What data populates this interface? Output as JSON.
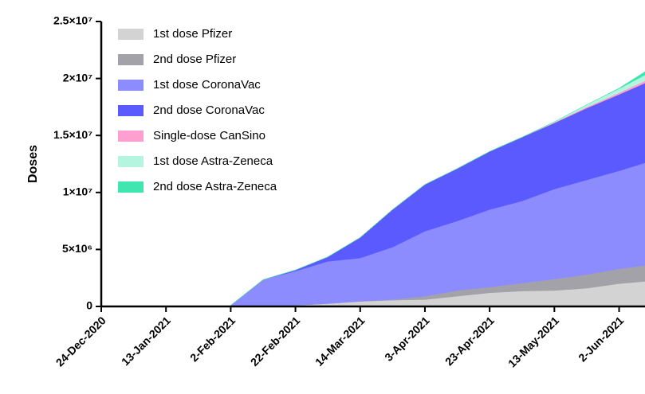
{
  "chart_data": {
    "type": "stacked-area",
    "ylabel": "Doses",
    "x": [
      "2021-02-02",
      "2021-02-12",
      "2021-02-22",
      "2021-03-04",
      "2021-03-14",
      "2021-03-24",
      "2021-04-03",
      "2021-04-13",
      "2021-04-23",
      "2021-05-03",
      "2021-05-13",
      "2021-05-23",
      "2021-06-02",
      "2021-06-10"
    ],
    "series": [
      {
        "name": "1st dose Pfizer",
        "color": "#d3d3d3",
        "values": [
          0,
          50000,
          100000,
          250000,
          450000,
          550000,
          600000,
          900000,
          1200000,
          1350000,
          1400000,
          1600000,
          2000000,
          2200000
        ]
      },
      {
        "name": "2nd dose Pfizer",
        "color": "#a2a2a8",
        "values": [
          0,
          0,
          0,
          0,
          0,
          50000,
          300000,
          500000,
          500000,
          700000,
          1000000,
          1200000,
          1300000,
          1400000
        ]
      },
      {
        "name": "1st dose CoronaVac",
        "color": "#8c8cff",
        "values": [
          100000,
          2300000,
          3000000,
          3700000,
          3800000,
          4600000,
          5700000,
          6100000,
          6800000,
          7200000,
          7900000,
          8300000,
          8600000,
          9000000
        ]
      },
      {
        "name": "2nd dose CoronaVac",
        "color": "#5a5aff",
        "values": [
          0,
          0,
          100000,
          400000,
          1800000,
          3300000,
          4100000,
          4600000,
          5100000,
          5600000,
          5800000,
          6300000,
          6700000,
          7000000
        ]
      },
      {
        "name": "Single-dose CanSino",
        "color": "#ff9fcf",
        "values": [
          0,
          0,
          0,
          0,
          0,
          0,
          0,
          0,
          0,
          0,
          50000,
          100000,
          150000,
          200000
        ]
      },
      {
        "name": "1st dose Astra-Zeneca",
        "color": "#b5f5e0",
        "values": [
          0,
          0,
          0,
          0,
          0,
          0,
          0,
          0,
          0,
          0,
          50000,
          200000,
          350000,
          500000
        ]
      },
      {
        "name": "2nd dose Astra-Zeneca",
        "color": "#40e6b0",
        "values": [
          0,
          0,
          0,
          0,
          0,
          0,
          0,
          0,
          0,
          0,
          0,
          0,
          50000,
          300000
        ]
      }
    ],
    "xlim": [
      "2020-12-24",
      "2021-06-10"
    ],
    "xticks": [
      {
        "value": "2020-12-24",
        "label": "24-Dec-2020"
      },
      {
        "value": "2021-01-13",
        "label": "13-Jan-2021"
      },
      {
        "value": "2021-02-02",
        "label": "2-Feb-2021"
      },
      {
        "value": "2021-02-22",
        "label": "22-Feb-2021"
      },
      {
        "value": "2021-03-14",
        "label": "14-Mar-2021"
      },
      {
        "value": "2021-04-03",
        "label": "3-Apr-2021"
      },
      {
        "value": "2021-04-23",
        "label": "23-Apr-2021"
      },
      {
        "value": "2021-05-13",
        "label": "13-May-2021"
      },
      {
        "value": "2021-06-02",
        "label": "2-Jun-2021"
      }
    ],
    "ylim": [
      0,
      25000000
    ],
    "yticks": [
      0,
      {
        "value": 5000000,
        "label": "5×10⁶"
      },
      {
        "value": 10000000,
        "label": "1×10⁷"
      },
      {
        "value": 15000000,
        "label": "1.5×10⁷"
      },
      {
        "value": 20000000,
        "label": "2×10⁷"
      },
      {
        "value": 25000000,
        "label": "2.5×10⁷"
      }
    ],
    "legend": "top-left"
  }
}
